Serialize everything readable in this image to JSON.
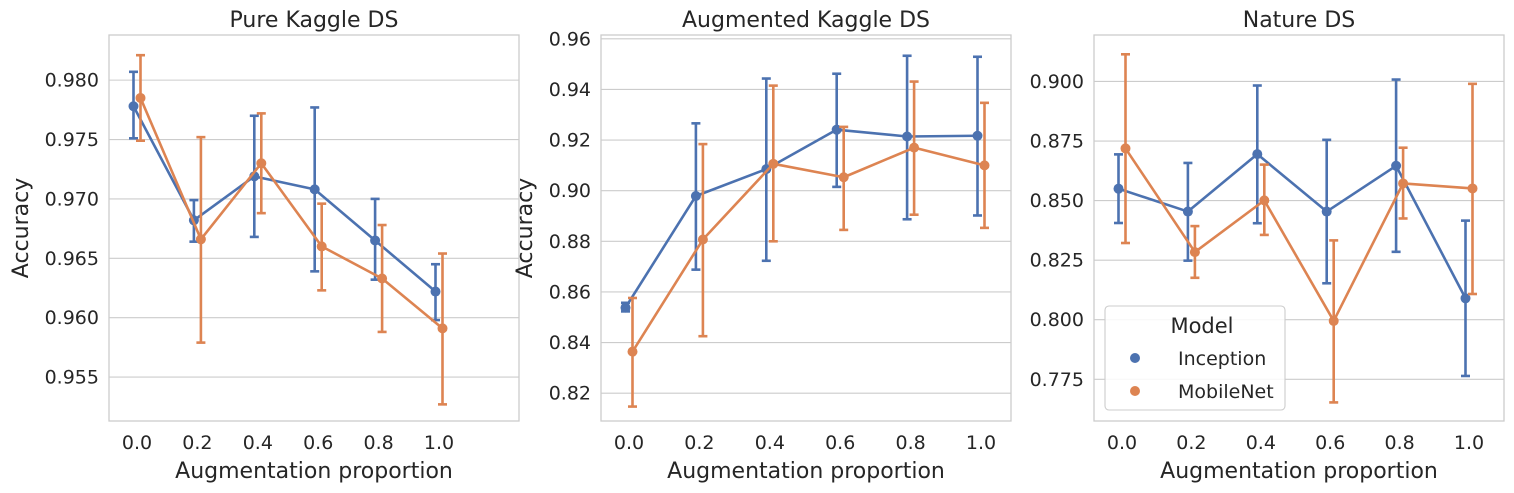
{
  "chart_data": [
    {
      "type": "line",
      "title": "Pure Kaggle DS",
      "xlabel": "Augmentation proportion",
      "ylabel": "Accuracy",
      "categories": [
        "0.0",
        "0.2",
        "0.4",
        "0.6",
        "0.8",
        "1.0"
      ],
      "ylim": [
        0.9513,
        0.9838
      ],
      "yticks": [
        0.955,
        0.96,
        0.965,
        0.97,
        0.975,
        0.98
      ],
      "ytick_labels": [
        "0.955",
        "0.960",
        "0.965",
        "0.970",
        "0.975",
        "0.980"
      ],
      "grid": true,
      "series": [
        {
          "name": "Inception",
          "color": "#4c72b0",
          "values": [
            0.9778,
            0.9682,
            0.9719,
            0.9708,
            0.9665,
            0.9622
          ],
          "err_low": [
            0.9751,
            0.9664,
            0.9668,
            0.9639,
            0.9632,
            0.9598
          ],
          "err_high": [
            0.9807,
            0.9699,
            0.977,
            0.9777,
            0.97,
            0.9645
          ]
        },
        {
          "name": "MobileNet",
          "color": "#dd8452",
          "values": [
            0.9785,
            0.9666,
            0.973,
            0.966,
            0.9633,
            0.9591
          ],
          "err_low": [
            0.9749,
            0.9579,
            0.9688,
            0.9623,
            0.9588,
            0.9527
          ],
          "err_high": [
            0.9821,
            0.9752,
            0.9772,
            0.9696,
            0.9678,
            0.9654
          ]
        }
      ]
    },
    {
      "type": "line",
      "title": "Augmented Kaggle DS",
      "xlabel": "Augmentation proportion",
      "ylabel": "Accuracy",
      "categories": [
        "0.0",
        "0.2",
        "0.4",
        "0.6",
        "0.8",
        "1.0"
      ],
      "ylim": [
        0.809,
        0.9615
      ],
      "yticks": [
        0.82,
        0.84,
        0.86,
        0.88,
        0.9,
        0.92,
        0.94,
        0.96
      ],
      "ytick_labels": [
        "0.82",
        "0.84",
        "0.86",
        "0.88",
        "0.90",
        "0.92",
        "0.94",
        "0.96"
      ],
      "grid": true,
      "series": [
        {
          "name": "Inception",
          "color": "#4c72b0",
          "values": [
            0.8538,
            0.8979,
            0.9085,
            0.9241,
            0.9214,
            0.9217
          ],
          "err_low": [
            0.8523,
            0.8688,
            0.8723,
            0.9015,
            0.8887,
            0.8902
          ],
          "err_high": [
            0.8557,
            0.9266,
            0.9443,
            0.9462,
            0.9533,
            0.9529
          ]
        },
        {
          "name": "MobileNet",
          "color": "#dd8452",
          "values": [
            0.8364,
            0.8807,
            0.9106,
            0.9053,
            0.917,
            0.91
          ],
          "err_low": [
            0.8147,
            0.8425,
            0.88,
            0.8845,
            0.8905,
            0.8853
          ],
          "err_high": [
            0.8576,
            0.9184,
            0.9415,
            0.9252,
            0.9431,
            0.9347
          ]
        }
      ]
    },
    {
      "type": "line",
      "title": "Nature DS",
      "xlabel": "Augmentation proportion",
      "ylabel": "",
      "categories": [
        "0.0",
        "0.2",
        "0.4",
        "0.6",
        "0.8",
        "1.0"
      ],
      "ylim": [
        0.7575,
        0.9195
      ],
      "yticks": [
        0.775,
        0.8,
        0.825,
        0.85,
        0.875,
        0.9
      ],
      "ytick_labels": [
        "0.775",
        "0.800",
        "0.825",
        "0.850",
        "0.875",
        "0.900"
      ],
      "grid": true,
      "legend": {
        "title": "Model",
        "placement": "lower-left"
      },
      "series": [
        {
          "name": "Inception",
          "color": "#4c72b0",
          "values": [
            0.855,
            0.8454,
            0.8695,
            0.8454,
            0.8646,
            0.809
          ],
          "err_low": [
            0.8406,
            0.8248,
            0.8405,
            0.8153,
            0.8285,
            0.7764
          ],
          "err_high": [
            0.8694,
            0.8658,
            0.8983,
            0.8755,
            0.9008,
            0.8416
          ]
        },
        {
          "name": "MobileNet",
          "color": "#dd8452",
          "values": [
            0.8719,
            0.8284,
            0.8501,
            0.7995,
            0.8572,
            0.8551
          ],
          "err_low": [
            0.8322,
            0.8176,
            0.8356,
            0.7653,
            0.8425,
            0.8108
          ],
          "err_high": [
            0.9114,
            0.8393,
            0.8651,
            0.8333,
            0.8722,
            0.899
          ]
        }
      ]
    }
  ]
}
